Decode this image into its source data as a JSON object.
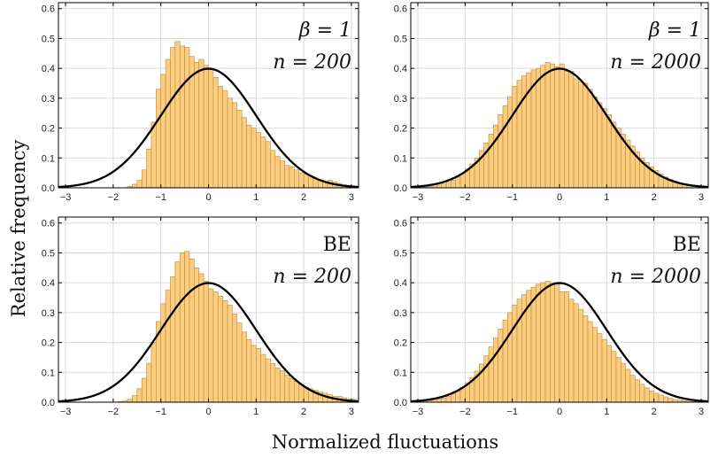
{
  "figure": {
    "xlabel": "Normalized fluctuations",
    "ylabel": "Relative frequency"
  },
  "colors": {
    "bar_fill": "#FDCC7C",
    "bar_edge": "#B58A4A",
    "curve": "#000000",
    "grid": "#D9D9D9",
    "frame": "#000000"
  },
  "chart_data": [
    {
      "type": "bar",
      "panel": "top-left",
      "label_line1": "β = 1",
      "label_line2": "n = 200",
      "xlim": [
        -3.15,
        3.15
      ],
      "ylim": [
        0,
        0.62
      ],
      "xticks": [
        "−3",
        "−2",
        "−1",
        "0",
        "1",
        "2",
        "3"
      ],
      "yticks": [
        "0.0",
        "0.1",
        "0.2",
        "0.3",
        "0.4",
        "0.5",
        "0.6"
      ],
      "grid": true,
      "overlay_curve": "standard normal density",
      "bin_width": 0.1,
      "bin_start": -3.1,
      "values": [
        0,
        0,
        0,
        0,
        0,
        0,
        0,
        0,
        0,
        0,
        0,
        0,
        0,
        0,
        0.005,
        0.012,
        0.025,
        0.06,
        0.13,
        0.22,
        0.33,
        0.38,
        0.43,
        0.47,
        0.49,
        0.475,
        0.47,
        0.44,
        0.42,
        0.43,
        0.41,
        0.4,
        0.37,
        0.34,
        0.325,
        0.3,
        0.285,
        0.26,
        0.235,
        0.21,
        0.2,
        0.185,
        0.17,
        0.155,
        0.125,
        0.105,
        0.09,
        0.075,
        0.07,
        0.06,
        0.05,
        0.045,
        0.04,
        0.03,
        0.025,
        0.02,
        0.025,
        0.02,
        0.015,
        0.01,
        0.008,
        0.005,
        0.003
      ]
    },
    {
      "type": "bar",
      "panel": "top-right",
      "label_line1": "β = 1",
      "label_line2": "n = 2000",
      "xlim": [
        -3.15,
        3.15
      ],
      "ylim": [
        0,
        0.62
      ],
      "xticks": [
        "−3",
        "−2",
        "−1",
        "0",
        "1",
        "2",
        "3"
      ],
      "yticks": [
        "0.0",
        "0.1",
        "0.2",
        "0.3",
        "0.4",
        "0.5",
        "0.6"
      ],
      "grid": true,
      "overlay_curve": "standard normal density",
      "bin_width": 0.1,
      "bin_start": -3.1,
      "values": [
        0,
        0,
        0.003,
        0.005,
        0.006,
        0.009,
        0.013,
        0.018,
        0.026,
        0.036,
        0.048,
        0.063,
        0.08,
        0.1,
        0.125,
        0.15,
        0.18,
        0.21,
        0.245,
        0.275,
        0.305,
        0.34,
        0.36,
        0.375,
        0.385,
        0.395,
        0.4,
        0.41,
        0.42,
        0.415,
        0.405,
        0.415,
        0.39,
        0.39,
        0.365,
        0.355,
        0.35,
        0.33,
        0.305,
        0.285,
        0.265,
        0.245,
        0.22,
        0.2,
        0.18,
        0.16,
        0.14,
        0.12,
        0.1,
        0.085,
        0.07,
        0.058,
        0.046,
        0.036,
        0.028,
        0.022,
        0.016,
        0.012,
        0.009,
        0.006,
        0.004,
        0.003,
        0.002
      ]
    },
    {
      "type": "bar",
      "panel": "bottom-left",
      "label_line1": "BE",
      "label_line2": "n = 200",
      "xlim": [
        -3.15,
        3.15
      ],
      "ylim": [
        0,
        0.62
      ],
      "xticks": [
        "−3",
        "−2",
        "−1",
        "0",
        "1",
        "2",
        "3"
      ],
      "yticks": [
        "0.0",
        "0.1",
        "0.2",
        "0.3",
        "0.4",
        "0.5",
        "0.6"
      ],
      "grid": true,
      "overlay_curve": "standard normal density",
      "bin_width": 0.1,
      "bin_start": -3.1,
      "values": [
        0,
        0,
        0,
        0,
        0,
        0,
        0,
        0,
        0,
        0,
        0,
        0,
        0.002,
        0.004,
        0.01,
        0.022,
        0.045,
        0.08,
        0.13,
        0.2,
        0.27,
        0.33,
        0.375,
        0.42,
        0.47,
        0.5,
        0.505,
        0.48,
        0.45,
        0.43,
        0.405,
        0.38,
        0.37,
        0.355,
        0.34,
        0.325,
        0.295,
        0.265,
        0.235,
        0.21,
        0.19,
        0.18,
        0.16,
        0.145,
        0.13,
        0.115,
        0.105,
        0.09,
        0.08,
        0.07,
        0.06,
        0.05,
        0.045,
        0.04,
        0.035,
        0.03,
        0.025,
        0.02,
        0.02,
        0.015,
        0.012,
        0.01,
        0.006
      ]
    },
    {
      "type": "bar",
      "panel": "bottom-right",
      "label_line1": "BE",
      "label_line2": "n = 2000",
      "xlim": [
        -3.15,
        3.15
      ],
      "ylim": [
        0,
        0.62
      ],
      "xticks": [
        "−3",
        "−2",
        "−1",
        "0",
        "1",
        "2",
        "3"
      ],
      "yticks": [
        "0.0",
        "0.1",
        "0.2",
        "0.3",
        "0.4",
        "0.5",
        "0.6"
      ],
      "grid": true,
      "overlay_curve": "standard normal density",
      "bin_width": 0.1,
      "bin_start": -3.1,
      "values": [
        0,
        0.002,
        0.003,
        0.005,
        0.007,
        0.01,
        0.014,
        0.02,
        0.028,
        0.038,
        0.05,
        0.065,
        0.083,
        0.104,
        0.128,
        0.155,
        0.185,
        0.215,
        0.245,
        0.275,
        0.3,
        0.325,
        0.345,
        0.36,
        0.375,
        0.385,
        0.395,
        0.4,
        0.405,
        0.4,
        0.395,
        0.37,
        0.37,
        0.345,
        0.33,
        0.31,
        0.29,
        0.27,
        0.25,
        0.23,
        0.21,
        0.19,
        0.17,
        0.15,
        0.13,
        0.11,
        0.09,
        0.075,
        0.06,
        0.048,
        0.038,
        0.03,
        0.024,
        0.018,
        0.013,
        0.009,
        0.007,
        0.005,
        0.003,
        0.002,
        0.001,
        0.001,
        0.001
      ]
    }
  ]
}
